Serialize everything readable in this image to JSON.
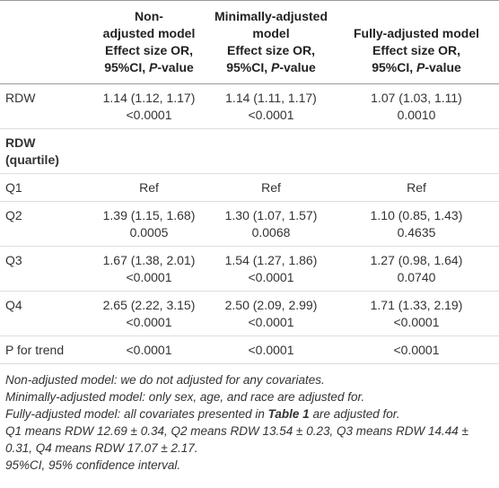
{
  "header": {
    "columns": [
      {
        "lines": [
          "Non-",
          "adjusted model",
          "Effect size OR,"
        ],
        "last": [
          "95%CI, ",
          "P",
          "-value"
        ]
      },
      {
        "lines": [
          "Minimally-adjusted",
          "model",
          "Effect size OR,"
        ],
        "last": [
          "95%CI, ",
          "P",
          "-value"
        ]
      },
      {
        "lines": [
          "Fully-adjusted model",
          "Effect size OR,"
        ],
        "last": [
          "95%CI, ",
          "P",
          "-value"
        ]
      }
    ]
  },
  "rows": [
    {
      "label": "RDW",
      "cells": [
        [
          "1.14 (1.12, 1.17)",
          "<0.0001"
        ],
        [
          "1.14 (1.11, 1.17)",
          "<0.0001"
        ],
        [
          "1.07 (1.03, 1.11)",
          "0.0010"
        ]
      ]
    },
    {
      "section": [
        "RDW",
        "(quartile)"
      ]
    },
    {
      "label": "Q1",
      "cells": [
        [
          "Ref"
        ],
        [
          "Ref"
        ],
        [
          "Ref"
        ]
      ]
    },
    {
      "label": "Q2",
      "cells": [
        [
          "1.39 (1.15, 1.68)",
          "0.0005"
        ],
        [
          "1.30 (1.07, 1.57)",
          "0.0068"
        ],
        [
          "1.10 (0.85, 1.43)",
          "0.4635"
        ]
      ]
    },
    {
      "label": "Q3",
      "cells": [
        [
          "1.67 (1.38, 2.01)",
          "<0.0001"
        ],
        [
          "1.54 (1.27, 1.86)",
          "<0.0001"
        ],
        [
          "1.27 (0.98, 1.64)",
          "0.0740"
        ]
      ]
    },
    {
      "label": "Q4",
      "cells": [
        [
          "2.65 (2.22, 3.15)",
          "<0.0001"
        ],
        [
          "2.50 (2.09, 2.99)",
          "<0.0001"
        ],
        [
          "1.71 (1.33, 2.19)",
          "<0.0001"
        ]
      ]
    },
    {
      "label": "P for trend",
      "cells": [
        [
          "<0.0001"
        ],
        [
          "<0.0001"
        ],
        [
          "<0.0001"
        ]
      ]
    }
  ],
  "footnotes": [
    "Non-adjusted model: we do not adjusted for any covariates.",
    "Minimally-adjusted model: only sex, age, and race are adjusted for.",
    [
      "Fully-adjusted model: all covariates presented in ",
      "Table 1",
      " are adjusted for."
    ],
    "Q1 means RDW 12.69 ± 0.34, Q2 means RDW 13.54 ± 0.23, Q3 means RDW 14.44 ± 0.31, Q4 means RDW 17.07 ± 2.17.",
    "95%CI, 95% confidence interval."
  ]
}
